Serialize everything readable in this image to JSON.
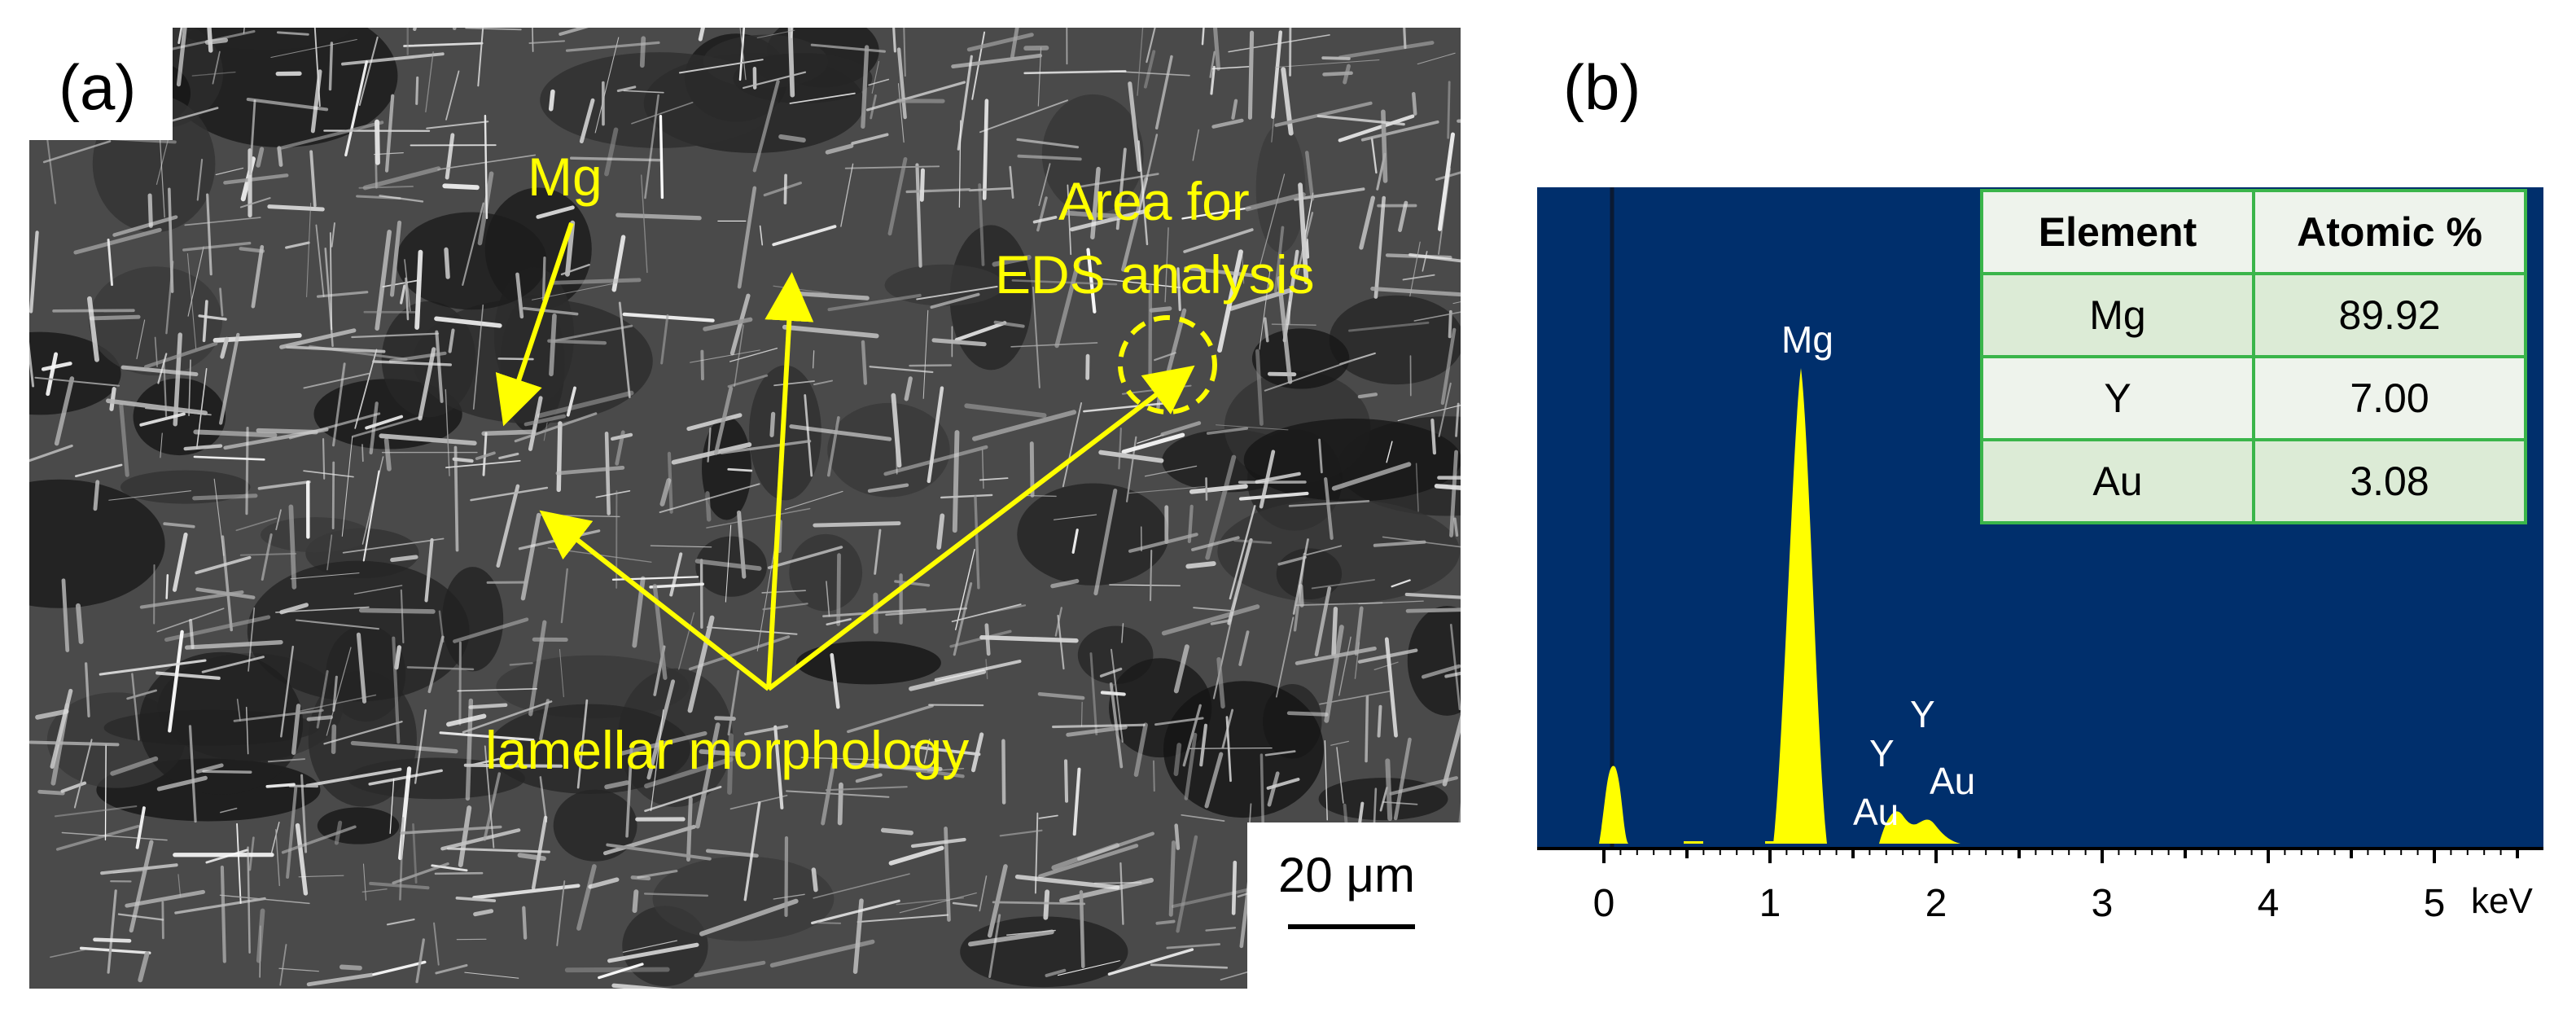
{
  "panel_a": {
    "label": "(a)",
    "annotations": {
      "mg": "Mg",
      "area_line1": "Area for",
      "area_line2": "EDS analysis",
      "lamellar": "lamellar morphology"
    },
    "scale_bar": "20 μm",
    "colors": {
      "annotation": "#ffff00"
    }
  },
  "panel_b": {
    "label": "(b)",
    "peak_labels": {
      "mg": "Mg",
      "y_upper": "Y",
      "y_lower": "Y",
      "au_upper": "Au",
      "au_lower": "Au"
    },
    "x_ticks": [
      "0",
      "1",
      "2",
      "3",
      "4",
      "5"
    ],
    "x_unit": "keV",
    "table": {
      "headers": [
        "Element",
        "Atomic %"
      ],
      "rows": [
        [
          "Mg",
          "89.92"
        ],
        [
          "Y",
          "7.00"
        ],
        [
          "Au",
          "3.08"
        ]
      ]
    },
    "colors": {
      "background": "#002f6c",
      "peak": "#ffff00",
      "table_border": "#3ab54a"
    }
  }
}
